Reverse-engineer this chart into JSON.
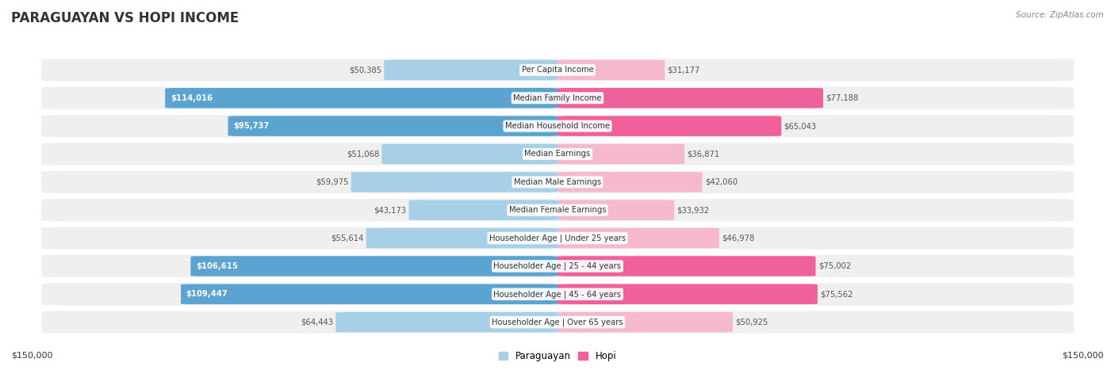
{
  "title": "PARAGUAYAN VS HOPI INCOME",
  "source": "Source: ZipAtlas.com",
  "categories": [
    "Per Capita Income",
    "Median Family Income",
    "Median Household Income",
    "Median Earnings",
    "Median Male Earnings",
    "Median Female Earnings",
    "Householder Age | Under 25 years",
    "Householder Age | 25 - 44 years",
    "Householder Age | 45 - 64 years",
    "Householder Age | Over 65 years"
  ],
  "paraguayan_values": [
    50385,
    114016,
    95737,
    51068,
    59975,
    43173,
    55614,
    106615,
    109447,
    64443
  ],
  "hopi_values": [
    31177,
    77188,
    65043,
    36871,
    42060,
    33932,
    46978,
    75002,
    75562,
    50925
  ],
  "max_value": 150000,
  "paraguayan_color_normal": "#a8cfe8",
  "paraguayan_color_highlight": "#5ba3d0",
  "hopi_color_normal": "#f5b8cc",
  "hopi_color_highlight": "#f0609a",
  "background_color": "#ffffff",
  "row_bg_color": "#efefef",
  "title_color": "#333333",
  "value_color_dark": "#555555",
  "value_color_white": "#ffffff",
  "axis_label_left": "$150,000",
  "axis_label_right": "$150,000",
  "legend_paraguayan": "Paraguayan",
  "legend_hopi": "Hopi",
  "par_highlight_indices": [
    1,
    2,
    7,
    8
  ],
  "hopi_highlight_indices": [
    1,
    2,
    7,
    8
  ]
}
